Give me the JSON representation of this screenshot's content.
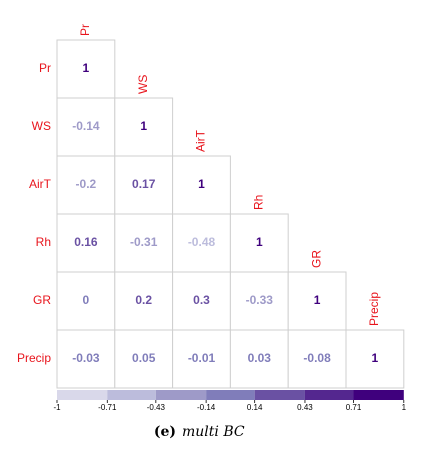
{
  "chart_data": {
    "type": "corrplot",
    "variables": [
      "Pr",
      "WS",
      "AirT",
      "Rh",
      "GR",
      "Precip"
    ],
    "values": [
      [
        1
      ],
      [
        -0.14,
        1
      ],
      [
        -0.2,
        0.17,
        1
      ],
      [
        0.16,
        -0.31,
        -0.48,
        1
      ],
      [
        0,
        0.2,
        0.3,
        -0.33,
        1
      ],
      [
        -0.03,
        0.05,
        -0.01,
        0.03,
        -0.08,
        1
      ]
    ],
    "clim": [
      -1,
      1
    ],
    "cticks": [
      -1,
      -0.71,
      -0.43,
      -0.14,
      0.14,
      0.43,
      0.71,
      1
    ],
    "colors": [
      "#d9d8ea",
      "#bcbcdc",
      "#9e9ac8",
      "#807dba",
      "#6a51a3",
      "#54278f",
      "#3f007d"
    ],
    "caption_label": "(e)",
    "caption": "multi BC"
  }
}
